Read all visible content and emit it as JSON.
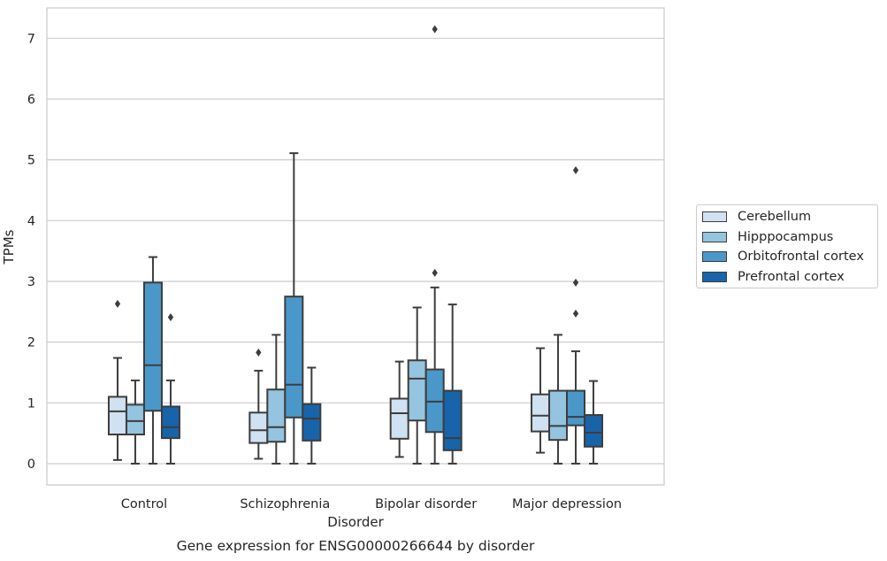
{
  "chart_data": {
    "type": "box",
    "title": "Gene expression for ENSG00000266644 by disorder",
    "xlabel": "Disorder",
    "ylabel": "TPMs",
    "ylim": [
      -0.35,
      7.5
    ],
    "yticks": [
      0,
      1,
      2,
      3,
      4,
      5,
      6,
      7
    ],
    "grid": "horizontal",
    "legend_placement": "right",
    "categories": [
      "Control",
      "Schizophrenia",
      "Bipolar disorder",
      "Major depression"
    ],
    "series": [
      {
        "name": "Cerebellum",
        "color": "#d0e1f2",
        "boxes": [
          {
            "whislo": 0.06,
            "q1": 0.48,
            "med": 0.86,
            "q3": 1.1,
            "whishi": 1.74,
            "fliers": [
              2.63
            ]
          },
          {
            "whislo": 0.08,
            "q1": 0.34,
            "med": 0.55,
            "q3": 0.84,
            "whishi": 1.53,
            "fliers": [
              1.83
            ]
          },
          {
            "whislo": 0.11,
            "q1": 0.41,
            "med": 0.83,
            "q3": 1.07,
            "whishi": 1.68,
            "fliers": []
          },
          {
            "whislo": 0.18,
            "q1": 0.53,
            "med": 0.79,
            "q3": 1.14,
            "whishi": 1.9,
            "fliers": []
          }
        ]
      },
      {
        "name": "Hipppocampus",
        "color": "#94c4df",
        "boxes": [
          {
            "whislo": 0.0,
            "q1": 0.48,
            "med": 0.7,
            "q3": 0.97,
            "whishi": 1.37,
            "fliers": []
          },
          {
            "whislo": 0.0,
            "q1": 0.36,
            "med": 0.6,
            "q3": 1.22,
            "whishi": 2.12,
            "fliers": []
          },
          {
            "whislo": 0.0,
            "q1": 0.71,
            "med": 1.4,
            "q3": 1.7,
            "whishi": 2.57,
            "fliers": []
          },
          {
            "whislo": 0.0,
            "q1": 0.39,
            "med": 0.62,
            "q3": 1.2,
            "whishi": 2.12,
            "fliers": []
          }
        ]
      },
      {
        "name": "Orbitofrontal cortex",
        "color": "#4a98c9",
        "boxes": [
          {
            "whislo": 0.0,
            "q1": 0.87,
            "med": 1.62,
            "q3": 2.98,
            "whishi": 3.4,
            "fliers": []
          },
          {
            "whislo": 0.0,
            "q1": 0.76,
            "med": 1.3,
            "q3": 2.75,
            "whishi": 5.11,
            "fliers": []
          },
          {
            "whislo": 0.0,
            "q1": 0.52,
            "med": 1.02,
            "q3": 1.55,
            "whishi": 2.9,
            "fliers": [
              3.14,
              7.15
            ]
          },
          {
            "whislo": 0.0,
            "q1": 0.63,
            "med": 0.77,
            "q3": 1.2,
            "whishi": 1.85,
            "fliers": [
              2.47,
              2.98,
              4.83
            ]
          }
        ]
      },
      {
        "name": "Prefrontal cortex",
        "color": "#1764ab",
        "boxes": [
          {
            "whislo": 0.0,
            "q1": 0.42,
            "med": 0.6,
            "q3": 0.94,
            "whishi": 1.37,
            "fliers": [
              2.41
            ]
          },
          {
            "whislo": 0.0,
            "q1": 0.38,
            "med": 0.74,
            "q3": 0.98,
            "whishi": 1.58,
            "fliers": []
          },
          {
            "whislo": 0.0,
            "q1": 0.22,
            "med": 0.42,
            "q3": 1.2,
            "whishi": 2.62,
            "fliers": []
          },
          {
            "whislo": 0.0,
            "q1": 0.28,
            "med": 0.51,
            "q3": 0.8,
            "whishi": 1.36,
            "fliers": []
          }
        ]
      }
    ]
  }
}
